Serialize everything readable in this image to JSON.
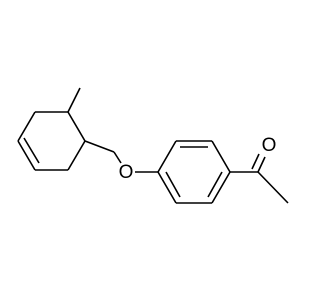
{
  "atoms": [
    {
      "label": "O"
    },
    {
      "label": "O"
    }
  ]
}
